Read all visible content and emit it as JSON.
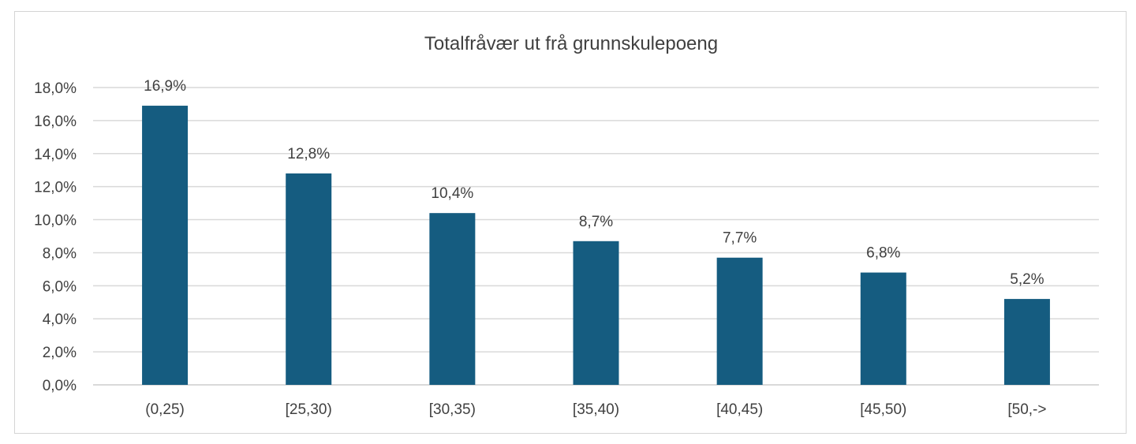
{
  "chart_data": {
    "type": "bar",
    "title": "Totalfråvær ut frå grunnskulepoeng",
    "xlabel": "",
    "ylabel": "",
    "categories": [
      "(0,25)",
      "[25,30)",
      "[30,35)",
      "[35,40)",
      "[40,45)",
      "[45,50)",
      "[50,->"
    ],
    "values": [
      16.9,
      12.8,
      10.4,
      8.7,
      7.7,
      6.8,
      5.2
    ],
    "data_labels": [
      "16,9%",
      "12,8%",
      "10,4%",
      "8,7%",
      "7,7%",
      "6,8%",
      "5,2%"
    ],
    "ylim": [
      0,
      18
    ],
    "ytick_values": [
      0,
      2,
      4,
      6,
      8,
      10,
      12,
      14,
      16,
      18
    ],
    "ytick_labels": [
      "0,0%",
      "2,0%",
      "4,0%",
      "6,0%",
      "8,0%",
      "10,0%",
      "12,0%",
      "14,0%",
      "16,0%",
      "18,0%"
    ],
    "grid": true,
    "legend": "none",
    "colors": {
      "bar": "#155c80",
      "grid": "#d9d9d9",
      "text": "#404040"
    }
  }
}
